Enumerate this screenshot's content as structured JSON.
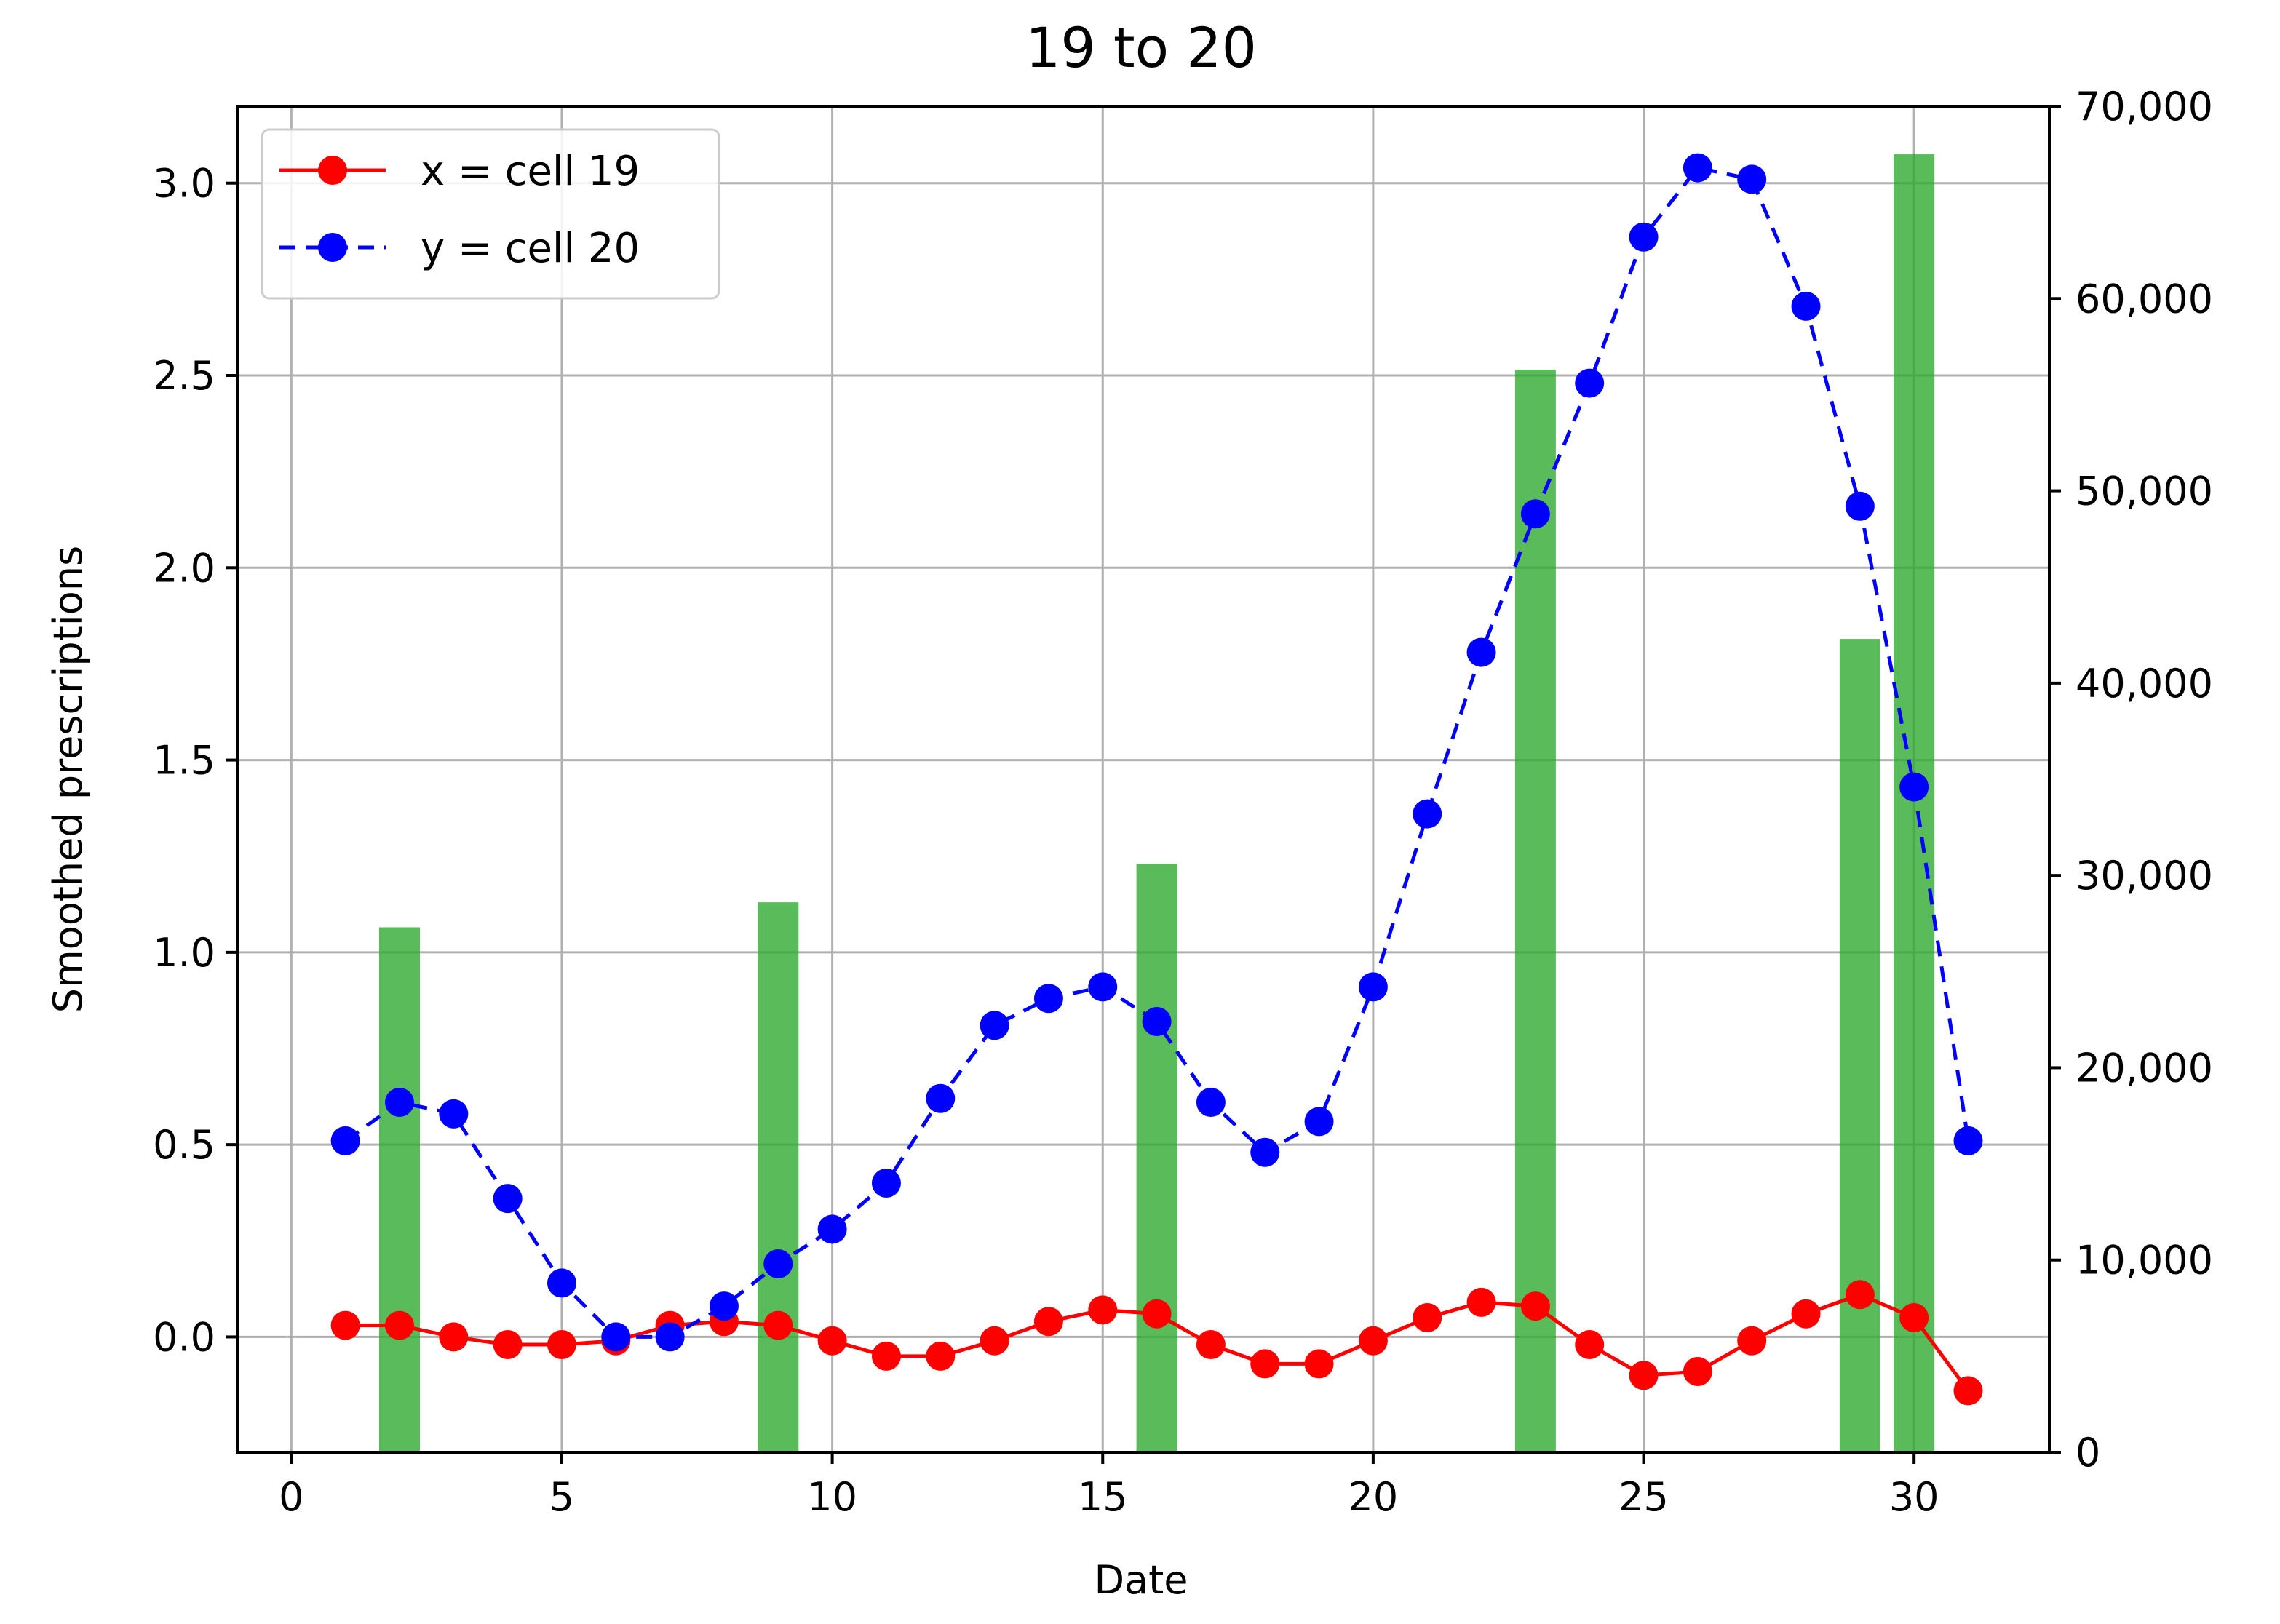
{
  "chart_data": {
    "type": "line",
    "title": "19 to 20",
    "xlabel": "Date",
    "ylabel": "Smoothed prescriptions",
    "y2label": "",
    "xlim": [
      -1,
      32.5
    ],
    "ylim": [
      -0.3,
      3.2
    ],
    "y2lim": [
      0,
      70000
    ],
    "x_ticks": [
      0,
      5,
      10,
      15,
      20,
      25,
      30
    ],
    "y_ticks": [
      0.0,
      0.5,
      1.0,
      1.5,
      2.0,
      2.5,
      3.0
    ],
    "y2_ticks": [
      0,
      10000,
      20000,
      30000,
      40000,
      50000,
      60000,
      70000
    ],
    "x_tick_labels": [
      "0",
      "5",
      "10",
      "15",
      "20",
      "25",
      "30"
    ],
    "y_tick_labels": [
      "0.0",
      "0.5",
      "1.0",
      "1.5",
      "2.0",
      "2.5",
      "3.0"
    ],
    "y2_tick_labels": [
      "0",
      "10,000",
      "20,000",
      "30,000",
      "40,000",
      "50,000",
      "60,000",
      "70,000"
    ],
    "grid": true,
    "legend_position": "upper-left",
    "series": [
      {
        "name": "x = cell 19",
        "color": "#ff0000",
        "style": "solid",
        "marker": "circle",
        "x": [
          1,
          2,
          3,
          4,
          5,
          6,
          7,
          8,
          9,
          10,
          11,
          12,
          13,
          14,
          15,
          16,
          17,
          18,
          19,
          20,
          21,
          22,
          23,
          24,
          25,
          26,
          27,
          28,
          29,
          30,
          31
        ],
        "y": [
          0.03,
          0.03,
          0.0,
          -0.02,
          -0.02,
          -0.01,
          0.03,
          0.04,
          0.03,
          -0.01,
          -0.05,
          -0.05,
          -0.01,
          0.04,
          0.07,
          0.06,
          -0.02,
          -0.07,
          -0.07,
          -0.01,
          0.05,
          0.09,
          0.08,
          -0.02,
          -0.1,
          -0.09,
          -0.01,
          0.06,
          0.11,
          0.05,
          -0.14
        ]
      },
      {
        "name": "y = cell 20",
        "color": "#0000ff",
        "style": "dashed",
        "marker": "circle",
        "x": [
          1,
          2,
          3,
          4,
          5,
          6,
          7,
          8,
          9,
          10,
          11,
          12,
          13,
          14,
          15,
          16,
          17,
          18,
          19,
          20,
          21,
          22,
          23,
          24,
          25,
          26,
          27,
          28,
          29,
          30,
          31
        ],
        "y": [
          0.51,
          0.61,
          0.58,
          0.36,
          0.14,
          0.0,
          0.0,
          0.08,
          0.19,
          0.28,
          0.4,
          0.62,
          0.81,
          0.88,
          0.91,
          0.82,
          0.61,
          0.48,
          0.56,
          0.91,
          1.36,
          1.78,
          2.14,
          2.48,
          2.86,
          3.04,
          3.01,
          2.68,
          2.16,
          1.43,
          0.51
        ]
      }
    ],
    "bars": {
      "axis": "right",
      "color": "#2ca82c",
      "x": [
        2,
        9,
        16,
        23,
        29,
        30
      ],
      "values": [
        27300,
        28600,
        30600,
        56300,
        42300,
        67500
      ]
    }
  }
}
